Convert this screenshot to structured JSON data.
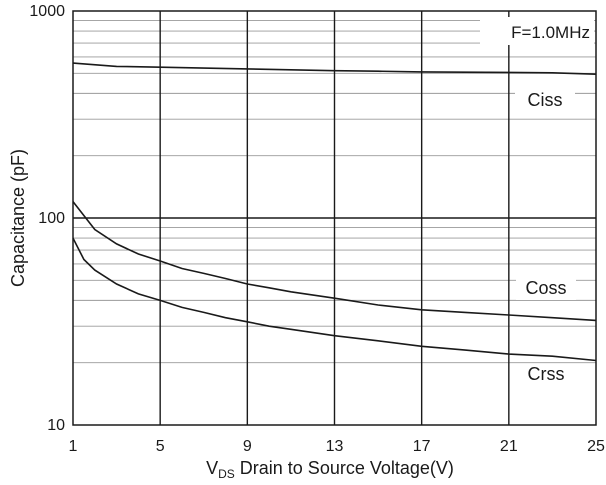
{
  "chart_data": {
    "type": "line",
    "y_scale": "log",
    "xlim": [
      1,
      25
    ],
    "ylim": [
      10,
      1000
    ],
    "x_ticks": [
      1,
      5,
      9,
      13,
      17,
      21,
      25
    ],
    "x_tick_labels": [
      "1",
      "5",
      "9",
      "13",
      "17",
      "21",
      "25"
    ],
    "y_tick_labels": [
      {
        "value": 10,
        "label": "10"
      },
      {
        "value": 100,
        "label": "100"
      },
      {
        "value": 1000,
        "label": "1000"
      }
    ],
    "grid": "on",
    "xlabel_main": "V",
    "xlabel_sub": "DS",
    "xlabel_rest": " Drain to Source Voltage(V)",
    "ylabel": "Capacitance (pF)",
    "annotation": "F=1.0MHz",
    "series": [
      {
        "name": "Ciss",
        "x": [
          1,
          3,
          5,
          7,
          9,
          11,
          13,
          15,
          17,
          19,
          21,
          23,
          25
        ],
        "y": [
          560,
          540,
          535,
          530,
          525,
          520,
          515,
          512,
          508,
          506,
          505,
          503,
          495
        ]
      },
      {
        "name": "Coss",
        "x": [
          1,
          2,
          3,
          4,
          5,
          6,
          7,
          8,
          9,
          10,
          11,
          13,
          15,
          17,
          19,
          21,
          23,
          25
        ],
        "y": [
          120,
          88,
          75,
          67,
          62,
          57,
          54,
          51,
          48,
          46,
          44,
          41,
          38,
          36,
          35,
          34,
          33,
          32
        ]
      },
      {
        "name": "Crss",
        "x": [
          1,
          1.5,
          2,
          3,
          4,
          5,
          6,
          7,
          8,
          9,
          10,
          11,
          13,
          15,
          17,
          19,
          21,
          23,
          25
        ],
        "y": [
          80,
          63,
          56,
          48,
          43,
          40,
          37,
          35,
          33,
          31.5,
          30,
          29,
          27,
          25.5,
          24,
          23,
          22,
          21.5,
          20.5
        ]
      }
    ],
    "colors": {
      "line": "#1a1a1a",
      "grid_major": "#1a1a1a",
      "grid_minor": "#9a9a9a"
    }
  }
}
